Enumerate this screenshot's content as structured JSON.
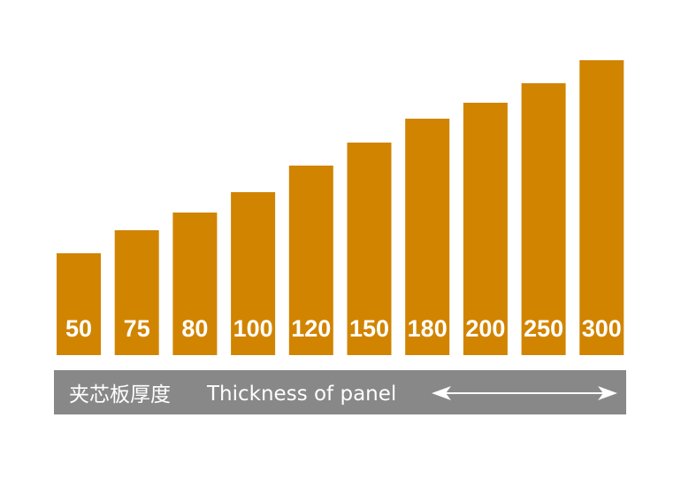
{
  "bars": {
    "labels": [
      "50",
      "75",
      "80",
      "100",
      "120",
      "150",
      "180",
      "200",
      "250",
      "300"
    ]
  },
  "caption": {
    "chinese": "夹芯板厚度",
    "english": "Thickness of panel"
  }
}
